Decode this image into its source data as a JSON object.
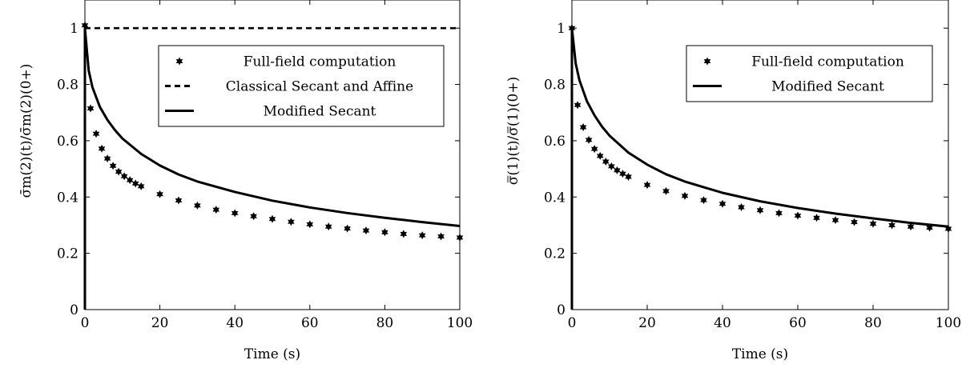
{
  "chart_data": [
    {
      "type": "line",
      "title": "",
      "xlabel": "Time (s)",
      "ylabel": "σ̄m(2)(t)/σ̄m(2)(0+)",
      "xlim": [
        0,
        100
      ],
      "ylim": [
        0,
        1.1
      ],
      "xticks": [
        "0",
        "20",
        "40",
        "60",
        "80",
        "100"
      ],
      "yticks": [
        "0",
        "0.2",
        "0.4",
        "0.6",
        "0.8",
        "1"
      ],
      "grid": false,
      "legend_position": "upper-right",
      "series": [
        {
          "name": "Full-field computation",
          "style": "markers",
          "x": [
            0,
            1.5,
            3,
            4.5,
            6,
            7.5,
            9,
            10.5,
            12,
            13.5,
            15,
            20,
            25,
            30,
            35,
            40,
            45,
            50,
            55,
            60,
            65,
            70,
            75,
            80,
            85,
            90,
            95,
            100
          ],
          "values": [
            1.01,
            0.715,
            0.625,
            0.572,
            0.537,
            0.511,
            0.49,
            0.474,
            0.46,
            0.448,
            0.438,
            0.41,
            0.388,
            0.37,
            0.355,
            0.343,
            0.332,
            0.322,
            0.312,
            0.303,
            0.295,
            0.288,
            0.281,
            0.275,
            0.269,
            0.264,
            0.26,
            0.256
          ]
        },
        {
          "name": "Classical Secant and Affine",
          "style": "dashed",
          "x": [
            0,
            100
          ],
          "values": [
            1.0,
            1.0
          ]
        },
        {
          "name": "Modified Secant",
          "style": "solid",
          "x": [
            0,
            1,
            2,
            4,
            6,
            8,
            10,
            15,
            20,
            25,
            30,
            40,
            50,
            60,
            70,
            80,
            90,
            100
          ],
          "values": [
            1.0,
            0.85,
            0.79,
            0.72,
            0.674,
            0.638,
            0.608,
            0.553,
            0.512,
            0.48,
            0.455,
            0.418,
            0.387,
            0.363,
            0.343,
            0.326,
            0.311,
            0.297
          ]
        }
      ]
    },
    {
      "type": "line",
      "title": "",
      "xlabel": "Time (s)",
      "ylabel": "σ̿(1)(t)/σ̿(1)(0+)",
      "xlim": [
        0,
        100
      ],
      "ylim": [
        0,
        1.1
      ],
      "xticks": [
        "0",
        "20",
        "40",
        "60",
        "80",
        "100"
      ],
      "yticks": [
        "0",
        "0.2",
        "0.4",
        "0.6",
        "0.8",
        "1"
      ],
      "grid": false,
      "legend_position": "upper-right",
      "series": [
        {
          "name": "Full-field computation",
          "style": "markers",
          "x": [
            0,
            1.5,
            3,
            4.5,
            6,
            7.5,
            9,
            10.5,
            12,
            13.5,
            15,
            20,
            25,
            30,
            35,
            40,
            45,
            50,
            55,
            60,
            65,
            70,
            75,
            80,
            85,
            90,
            95,
            100
          ],
          "values": [
            1.0,
            0.727,
            0.648,
            0.603,
            0.571,
            0.546,
            0.526,
            0.509,
            0.495,
            0.483,
            0.472,
            0.443,
            0.421,
            0.404,
            0.389,
            0.376,
            0.364,
            0.353,
            0.343,
            0.334,
            0.326,
            0.318,
            0.311,
            0.305,
            0.3,
            0.295,
            0.291,
            0.287
          ]
        },
        {
          "name": "Modified Secant",
          "style": "solid",
          "x": [
            0,
            1,
            2,
            4,
            6,
            8,
            10,
            15,
            20,
            25,
            30,
            40,
            50,
            60,
            70,
            80,
            90,
            100
          ],
          "values": [
            1.0,
            0.875,
            0.815,
            0.74,
            0.69,
            0.65,
            0.618,
            0.558,
            0.515,
            0.481,
            0.455,
            0.415,
            0.385,
            0.361,
            0.341,
            0.324,
            0.308,
            0.295
          ]
        }
      ]
    }
  ]
}
